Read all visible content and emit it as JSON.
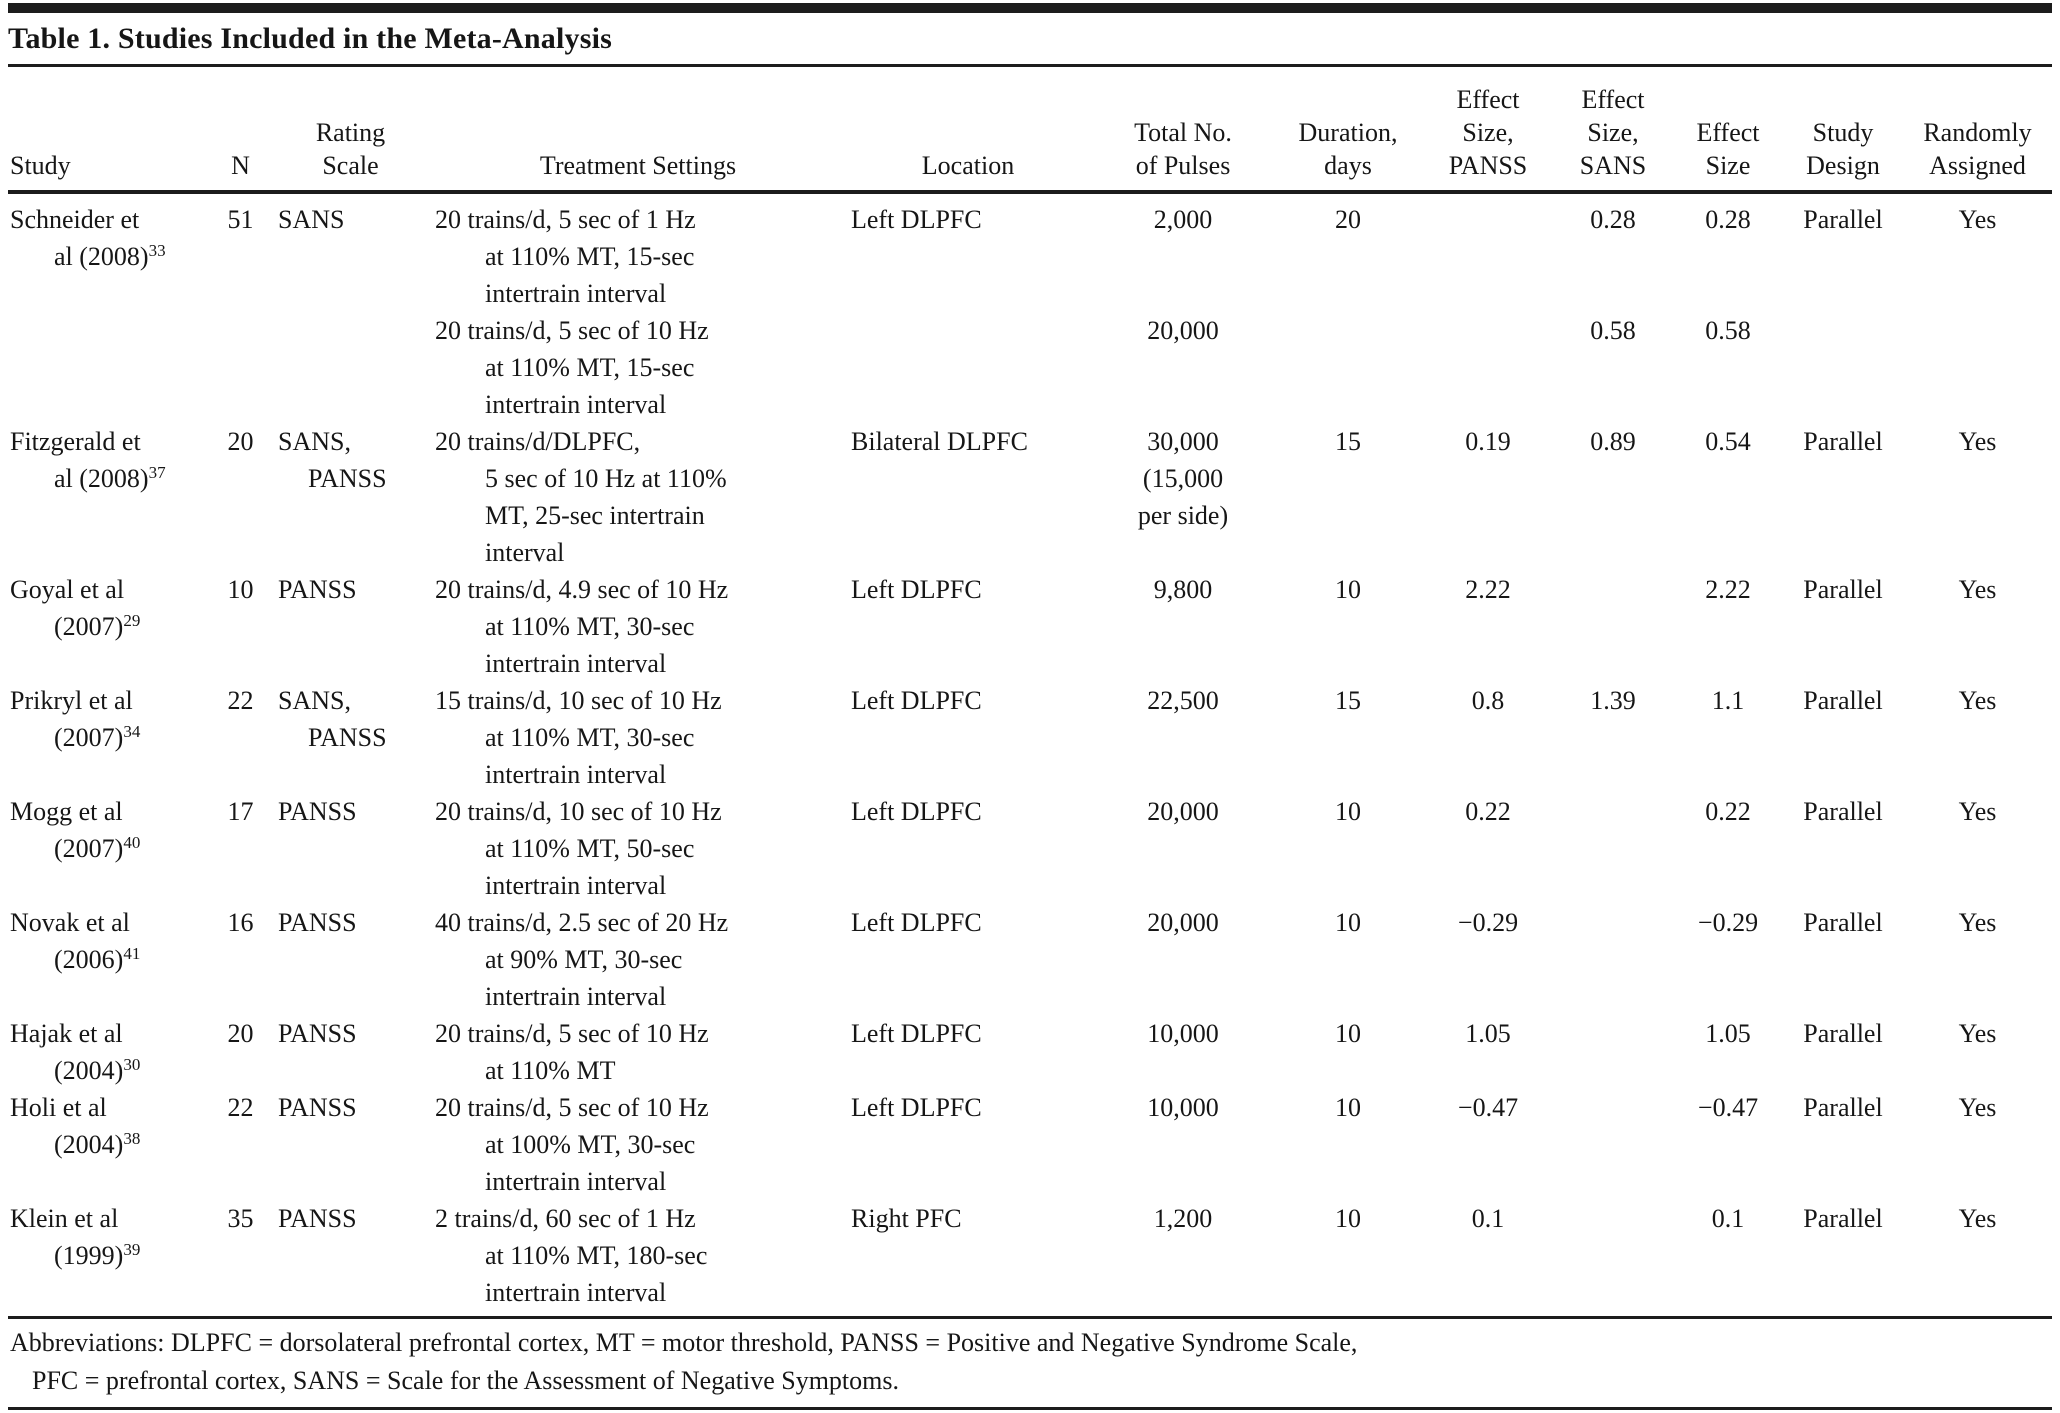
{
  "title": "Table 1. Studies Included in the Meta-Analysis",
  "header": {
    "study": [
      "Study"
    ],
    "n": [
      "N"
    ],
    "rating_scale": [
      "Rating",
      "Scale"
    ],
    "treatment": [
      "Treatment Settings"
    ],
    "location": [
      "Location"
    ],
    "pulses": [
      "Total No.",
      "of Pulses"
    ],
    "duration": [
      "Duration,",
      "days"
    ],
    "es_panss": [
      "Effect",
      "Size,",
      "PANSS"
    ],
    "es_sans": [
      "Effect",
      "Size,",
      "SANS"
    ],
    "effect_size": [
      "Effect",
      "Size"
    ],
    "design": [
      "Study",
      "Design"
    ],
    "random": [
      "Randomly",
      "Assigned"
    ]
  },
  "rows": [
    {
      "study_lines": [
        "Schneider et",
        "al (2008)"
      ],
      "study_sup": "33",
      "n": "51",
      "scale_lines": [
        "SANS"
      ],
      "treatment_lines": [
        "20 trains/d, 5 sec of 1 Hz",
        "at 110% MT, 15-sec",
        "intertrain interval"
      ],
      "location": "Left DLPFC",
      "pulses_lines": [
        "2,000"
      ],
      "duration": "20",
      "es_panss": "",
      "es_sans": "0.28",
      "effect_size": "0.28",
      "design": "Parallel",
      "random": "Yes"
    },
    {
      "study_lines": [],
      "study_sup": "",
      "n": "",
      "scale_lines": [],
      "treatment_lines": [
        "20 trains/d, 5 sec of 10 Hz",
        "at 110% MT, 15-sec",
        "intertrain interval"
      ],
      "location": "",
      "pulses_lines": [
        "20,000"
      ],
      "duration": "",
      "es_panss": "",
      "es_sans": "0.58",
      "effect_size": "0.58",
      "design": "",
      "random": ""
    },
    {
      "study_lines": [
        "Fitzgerald et",
        "al (2008)"
      ],
      "study_sup": "37",
      "n": "20",
      "scale_lines": [
        "SANS,",
        "PANSS"
      ],
      "treatment_lines": [
        "20 trains/d/DLPFC,",
        "5 sec of 10 Hz at 110%",
        "MT, 25-sec intertrain",
        "interval"
      ],
      "location": "Bilateral DLPFC",
      "pulses_lines": [
        "30,000",
        "(15,000",
        "per side)"
      ],
      "duration": "15",
      "es_panss": "0.19",
      "es_sans": "0.89",
      "effect_size": "0.54",
      "design": "Parallel",
      "random": "Yes"
    },
    {
      "study_lines": [
        "Goyal et al",
        "(2007)"
      ],
      "study_sup": "29",
      "n": "10",
      "scale_lines": [
        "PANSS"
      ],
      "treatment_lines": [
        "20 trains/d, 4.9 sec of 10 Hz",
        "at 110% MT, 30-sec",
        "intertrain interval"
      ],
      "location": "Left DLPFC",
      "pulses_lines": [
        "9,800"
      ],
      "duration": "10",
      "es_panss": "2.22",
      "es_sans": "",
      "effect_size": "2.22",
      "design": "Parallel",
      "random": "Yes"
    },
    {
      "study_lines": [
        "Prikryl et al",
        "(2007)"
      ],
      "study_sup": "34",
      "n": "22",
      "scale_lines": [
        "SANS,",
        "PANSS"
      ],
      "treatment_lines": [
        "15 trains/d, 10 sec of 10 Hz",
        "at 110% MT, 30-sec",
        "intertrain interval"
      ],
      "location": "Left DLPFC",
      "pulses_lines": [
        "22,500"
      ],
      "duration": "15",
      "es_panss": "0.8",
      "es_sans": "1.39",
      "effect_size": "1.1",
      "design": "Parallel",
      "random": "Yes"
    },
    {
      "study_lines": [
        "Mogg et al",
        "(2007)"
      ],
      "study_sup": "40",
      "n": "17",
      "scale_lines": [
        "PANSS"
      ],
      "treatment_lines": [
        "20 trains/d, 10 sec of 10 Hz",
        "at 110% MT, 50-sec",
        "intertrain interval"
      ],
      "location": "Left DLPFC",
      "pulses_lines": [
        "20,000"
      ],
      "duration": "10",
      "es_panss": "0.22",
      "es_sans": "",
      "effect_size": "0.22",
      "design": "Parallel",
      "random": "Yes"
    },
    {
      "study_lines": [
        "Novak et al",
        "(2006)"
      ],
      "study_sup": "41",
      "n": "16",
      "scale_lines": [
        "PANSS"
      ],
      "treatment_lines": [
        "40 trains/d, 2.5 sec of 20 Hz",
        "at 90% MT, 30-sec",
        "intertrain interval"
      ],
      "location": "Left DLPFC",
      "pulses_lines": [
        "20,000"
      ],
      "duration": "10",
      "es_panss": "−0.29",
      "es_sans": "",
      "effect_size": "−0.29",
      "design": "Parallel",
      "random": "Yes"
    },
    {
      "study_lines": [
        "Hajak et al",
        "(2004)"
      ],
      "study_sup": "30",
      "n": "20",
      "scale_lines": [
        "PANSS"
      ],
      "treatment_lines": [
        "20 trains/d, 5 sec of 10 Hz",
        "at 110% MT"
      ],
      "location": "Left DLPFC",
      "pulses_lines": [
        "10,000"
      ],
      "duration": "10",
      "es_panss": "1.05",
      "es_sans": "",
      "effect_size": "1.05",
      "design": "Parallel",
      "random": "Yes"
    },
    {
      "study_lines": [
        "Holi et al",
        "(2004)"
      ],
      "study_sup": "38",
      "n": "22",
      "scale_lines": [
        "PANSS"
      ],
      "treatment_lines": [
        "20 trains/d, 5 sec of 10 Hz",
        "at 100% MT, 30-sec",
        "intertrain interval"
      ],
      "location": "Left DLPFC",
      "pulses_lines": [
        "10,000"
      ],
      "duration": "10",
      "es_panss": "−0.47",
      "es_sans": "",
      "effect_size": "−0.47",
      "design": "Parallel",
      "random": "Yes"
    },
    {
      "study_lines": [
        "Klein et al",
        "(1999)"
      ],
      "study_sup": "39",
      "n": "35",
      "scale_lines": [
        "PANSS"
      ],
      "treatment_lines": [
        "2 trains/d, 60 sec of 1 Hz",
        "at 110% MT, 180-sec",
        "intertrain interval"
      ],
      "location": "Right PFC",
      "pulses_lines": [
        "1,200"
      ],
      "duration": "10",
      "es_panss": "0.1",
      "es_sans": "",
      "effect_size": "0.1",
      "design": "Parallel",
      "random": "Yes"
    }
  ],
  "footnote_lines": [
    "Abbreviations: DLPFC = dorsolateral prefrontal cortex, MT = motor threshold, PANSS = Positive and Negative Syndrome Scale,",
    "PFC = prefrontal cortex, SANS = Scale for the Assessment of Negative Symptoms."
  ]
}
